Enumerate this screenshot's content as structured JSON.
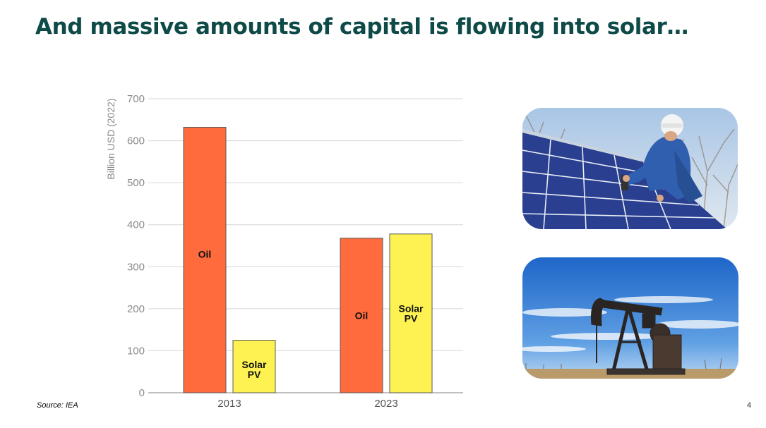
{
  "slide": {
    "title": "And massive amounts of capital is flowing into solar…",
    "source": "Source: IEA",
    "page_number": "4"
  },
  "chart_data": {
    "type": "bar",
    "categories": [
      "2013",
      "2023"
    ],
    "series": [
      {
        "name": "Oil",
        "color": "#ff6b3d",
        "values": [
          632,
          368
        ]
      },
      {
        "name": "Solar PV",
        "color": "#fdf252",
        "values": [
          125,
          378
        ]
      }
    ],
    "bar_labels": [
      {
        "category": "2013",
        "series": "Oil",
        "text": "Oil"
      },
      {
        "category": "2013",
        "series": "Solar PV",
        "text": "Solar PV"
      },
      {
        "category": "2023",
        "series": "Oil",
        "text": "Oil"
      },
      {
        "category": "2023",
        "series": "Solar PV",
        "text": "Solar PV"
      }
    ],
    "ylabel": "Billion USD (2022)",
    "ylim": [
      0,
      700
    ],
    "yticks": [
      0,
      100,
      200,
      300,
      400,
      500,
      600,
      700
    ],
    "grid": true
  },
  "images": {
    "top": {
      "icon": "solar-installer-photo"
    },
    "bottom": {
      "icon": "oil-pumpjack-photo"
    }
  }
}
